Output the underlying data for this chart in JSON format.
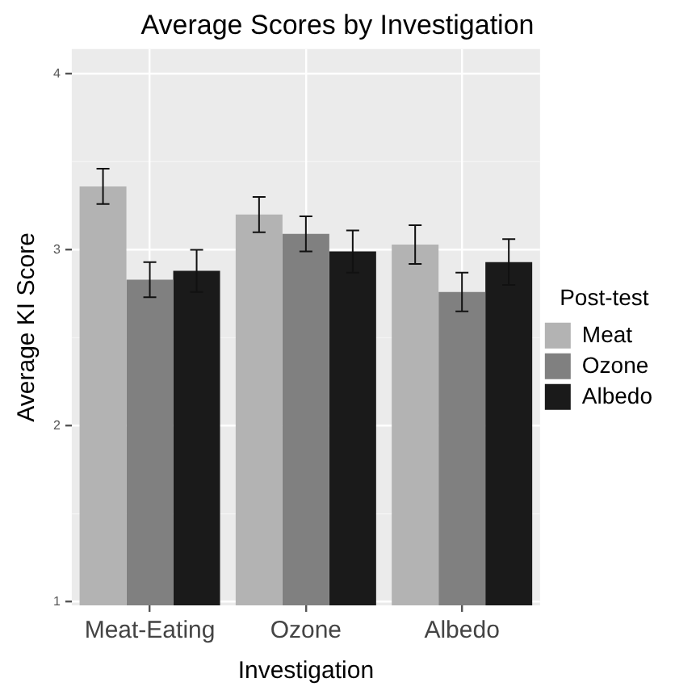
{
  "chart_data": {
    "type": "bar",
    "title": "Average Scores by Investigation",
    "xlabel": "Investigation",
    "ylabel": "Average KI Score",
    "legend_title": "Post-test",
    "legend": "right",
    "grid": true,
    "categories": [
      "Meat-Eating",
      "Ozone",
      "Albedo"
    ],
    "ylim": [
      0.98,
      4.14
    ],
    "yticks": [
      1,
      2,
      3,
      4
    ],
    "series": [
      {
        "name": "Meat",
        "color": "#b3b3b3",
        "values": [
          3.36,
          3.2,
          3.03
        ],
        "errors": [
          0.1,
          0.1,
          0.11
        ]
      },
      {
        "name": "Ozone",
        "color": "#808080",
        "values": [
          2.83,
          3.09,
          2.76
        ],
        "errors": [
          0.1,
          0.1,
          0.11
        ]
      },
      {
        "name": "Albedo",
        "color": "#1a1a1a",
        "values": [
          2.88,
          2.99,
          2.93
        ],
        "errors": [
          0.12,
          0.12,
          0.13
        ]
      }
    ]
  }
}
